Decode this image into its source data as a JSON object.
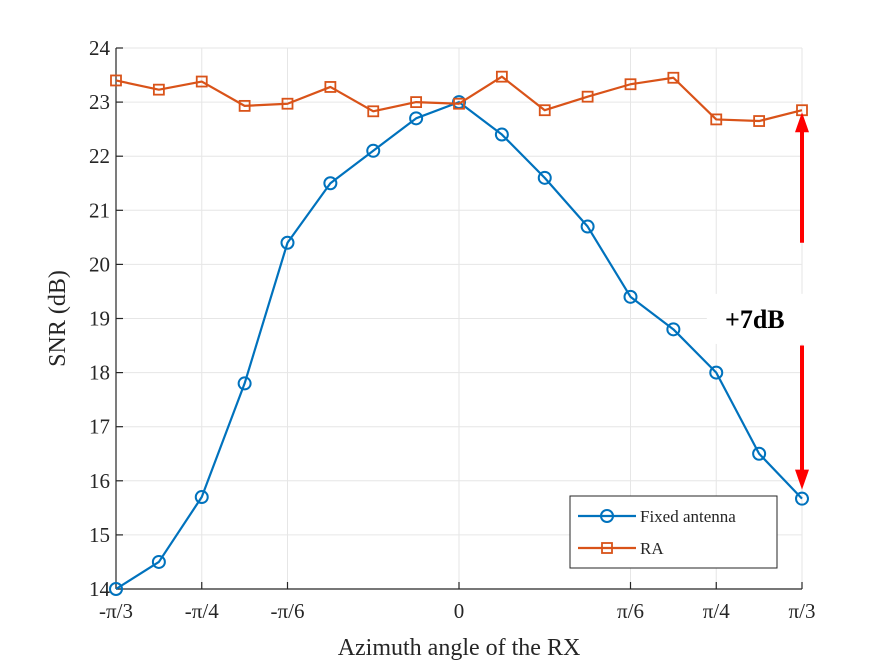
{
  "chart_data": {
    "type": "line",
    "title": "",
    "xlabel": "Azimuth angle of the RX",
    "ylabel": "SNR (dB)",
    "x_tick_labels": [
      "-π/3",
      "-π/4",
      "-π/6",
      "0",
      "π/6",
      "π/4",
      "π/3"
    ],
    "x_tick_values_deg": [
      -60,
      -45,
      -30,
      0,
      30,
      45,
      60
    ],
    "y_tick_labels": [
      "14",
      "15",
      "16",
      "17",
      "18",
      "19",
      "20",
      "21",
      "22",
      "23",
      "24"
    ],
    "y_tick_values": [
      14,
      15,
      16,
      17,
      18,
      19,
      20,
      21,
      22,
      23,
      24
    ],
    "xlim_deg": [
      -60,
      60
    ],
    "ylim": [
      14,
      24
    ],
    "grid": true,
    "legend_position": "bottom-right",
    "x_deg": [
      -60,
      -52.5,
      -45,
      -37.5,
      -30,
      -22.5,
      -15,
      -7.5,
      0,
      7.5,
      15,
      22.5,
      30,
      37.5,
      45,
      52.5,
      60
    ],
    "series": [
      {
        "name": "Fixed antenna",
        "color": "#0072BD",
        "marker": "circle",
        "values": [
          14.0,
          14.5,
          15.7,
          17.8,
          20.4,
          21.5,
          22.1,
          22.7,
          23.0,
          22.4,
          21.6,
          20.7,
          19.4,
          18.8,
          18.0,
          16.5,
          15.67
        ]
      },
      {
        "name": "RA",
        "color": "#D95319",
        "marker": "square",
        "values": [
          23.4,
          23.23,
          23.38,
          22.93,
          22.97,
          23.28,
          22.83,
          23.0,
          22.97,
          23.47,
          22.85,
          23.1,
          23.33,
          23.45,
          22.68,
          22.65,
          22.85
        ]
      }
    ],
    "annotations": [
      {
        "text": "+7dB",
        "x_deg": 50,
        "y": 18.9,
        "color": "#000000"
      }
    ],
    "arrows": {
      "color": "#FF0000",
      "x_deg": 60,
      "up": {
        "from": 20.4,
        "to": 22.85
      },
      "down": {
        "from": 18.5,
        "to": 15.67
      }
    }
  }
}
